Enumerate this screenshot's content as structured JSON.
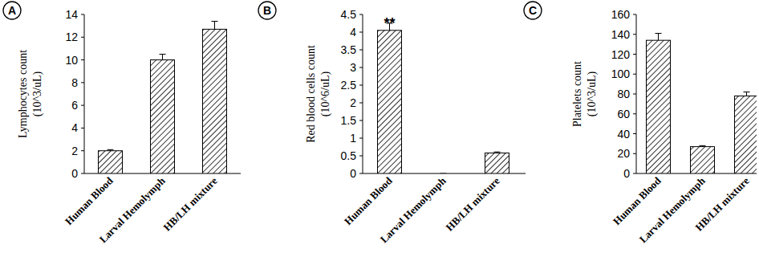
{
  "chart_data": [
    {
      "type": "bar",
      "panel": "A",
      "ylabel": [
        "Lymphocytes count",
        "(10^3/uL)"
      ],
      "categories": [
        "Human Blood",
        "Larval Hemolymph",
        "HB/LH mixture"
      ],
      "values": [
        2.0,
        10.0,
        12.7
      ],
      "errors": [
        0.1,
        0.5,
        0.7
      ],
      "color": "#000000",
      "ylim": [
        0,
        14
      ],
      "yticks": [
        0,
        2,
        4,
        6,
        8,
        10,
        12,
        14
      ],
      "grid": false
    },
    {
      "type": "bar",
      "panel": "B",
      "ylabel": [
        "Red blood cells count",
        "(10^6/uL)"
      ],
      "categories": [
        "Human Blood",
        "Larval Hemolymph",
        "HB/LH mixture"
      ],
      "values": [
        4.05,
        0,
        0.58
      ],
      "errors": [
        0.2,
        0,
        0.03
      ],
      "color": "#000000",
      "annotations": [
        {
          "index": 0,
          "text": "**"
        }
      ],
      "ylim": [
        0,
        4.5
      ],
      "yticks": [
        0,
        0.5,
        1,
        1.5,
        2,
        2.5,
        3,
        3.5,
        4,
        4.5
      ],
      "grid": false
    },
    {
      "type": "bar",
      "panel": "C",
      "ylabel": [
        "Platelets count",
        "(10^3/uL)"
      ],
      "categories": [
        "Human Blood",
        "Larval Hemolymph",
        "HB/LH mixture"
      ],
      "values": [
        134,
        27,
        78
      ],
      "errors": [
        7,
        1,
        4
      ],
      "color": "#000000",
      "ylim": [
        0,
        160
      ],
      "yticks": [
        0,
        20,
        40,
        60,
        80,
        100,
        120,
        140,
        160
      ],
      "grid": false
    }
  ]
}
